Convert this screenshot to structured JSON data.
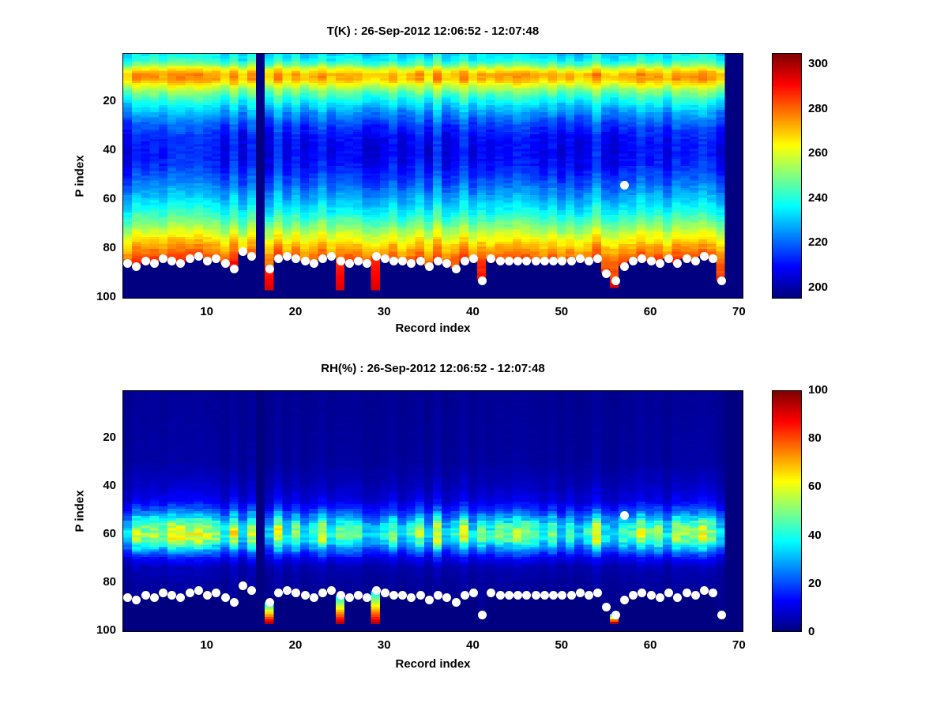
{
  "figure": {
    "background": "#ffffff",
    "marker_color": "#ffffff"
  },
  "surface_dots": [
    [
      1,
      86
    ],
    [
      2,
      87
    ],
    [
      3,
      85
    ],
    [
      4,
      86
    ],
    [
      5,
      84
    ],
    [
      6,
      85
    ],
    [
      7,
      86
    ],
    [
      8,
      84
    ],
    [
      9,
      83
    ],
    [
      10,
      85
    ],
    [
      11,
      84
    ],
    [
      12,
      86
    ],
    [
      13,
      88
    ],
    [
      14,
      81
    ],
    [
      15,
      83
    ],
    [
      17,
      88
    ],
    [
      18,
      84
    ],
    [
      19,
      83
    ],
    [
      20,
      84
    ],
    [
      21,
      85
    ],
    [
      22,
      86
    ],
    [
      23,
      84
    ],
    [
      24,
      83
    ],
    [
      25,
      85
    ],
    [
      26,
      86
    ],
    [
      27,
      85
    ],
    [
      28,
      86
    ],
    [
      29,
      83
    ],
    [
      30,
      84
    ],
    [
      31,
      85
    ],
    [
      32,
      85
    ],
    [
      33,
      86
    ],
    [
      34,
      85
    ],
    [
      35,
      87
    ],
    [
      36,
      85
    ],
    [
      37,
      86
    ],
    [
      38,
      88
    ],
    [
      39,
      85
    ],
    [
      40,
      84
    ],
    [
      41,
      93
    ],
    [
      42,
      84
    ],
    [
      43,
      85
    ],
    [
      44,
      85
    ],
    [
      45,
      85
    ],
    [
      46,
      85
    ],
    [
      47,
      85
    ],
    [
      48,
      85
    ],
    [
      49,
      85
    ],
    [
      50,
      85
    ],
    [
      51,
      85
    ],
    [
      52,
      84
    ],
    [
      53,
      85
    ],
    [
      54,
      84
    ],
    [
      55,
      90
    ],
    [
      56,
      93
    ],
    [
      57,
      87
    ],
    [
      58,
      85
    ],
    [
      59,
      84
    ],
    [
      60,
      85
    ],
    [
      61,
      86
    ],
    [
      62,
      84
    ],
    [
      63,
      86
    ],
    [
      64,
      84
    ],
    [
      65,
      85
    ],
    [
      66,
      83
    ],
    [
      67,
      84
    ],
    [
      68,
      93
    ]
  ],
  "chart_data": [
    {
      "type": "heatmap",
      "title": "T(K) : 26-Sep-2012 12:06:52 - 12:07:48",
      "xlabel": "Record index",
      "ylabel": "P index",
      "x_ticks": [
        10,
        20,
        30,
        40,
        50,
        60,
        70
      ],
      "y_ticks": [
        20,
        40,
        60,
        80,
        100
      ],
      "x_range": [
        1,
        70
      ],
      "y_range": [
        1,
        100
      ],
      "y_direction": "down",
      "colormap": "jet",
      "colorbar": {
        "min": 195,
        "max": 305,
        "ticks": [
          200,
          220,
          240,
          260,
          280,
          300
        ]
      },
      "profile": {
        "p": [
          1,
          3,
          5,
          7,
          9,
          11,
          13,
          15,
          18,
          22,
          26,
          30,
          34,
          38,
          42,
          46,
          50,
          54,
          58,
          62,
          66,
          70,
          74,
          78,
          82,
          85,
          88,
          92,
          96,
          100
        ],
        "value": [
          234,
          238,
          248,
          263,
          273,
          272,
          263,
          253,
          243,
          232,
          223,
          216,
          211,
          209,
          209,
          211,
          215,
          220,
          226,
          232,
          239,
          248,
          258,
          268,
          277,
          283,
          287,
          290,
          292,
          294
        ]
      },
      "variation": {
        "mode": "add",
        "column": 6,
        "noise": 2.5
      },
      "missing_records": [
        16,
        69,
        70
      ],
      "deep_records": [
        {
          "record": 17,
          "to_p": 97
        },
        {
          "record": 25,
          "to_p": 97
        },
        {
          "record": 29,
          "to_p": 97
        },
        {
          "record": 56,
          "to_p": 96
        }
      ],
      "deep_fill": {
        "from": 286,
        "to": 295
      },
      "extra_dots": [
        [
          57,
          54
        ]
      ]
    },
    {
      "type": "heatmap",
      "title": "RH(%) : 26-Sep-2012 12:06:52 - 12:07:48",
      "xlabel": "Record index",
      "ylabel": "P index",
      "x_ticks": [
        10,
        20,
        30,
        40,
        50,
        60,
        70
      ],
      "y_ticks": [
        20,
        40,
        60,
        80,
        100
      ],
      "x_range": [
        1,
        70
      ],
      "y_range": [
        1,
        100
      ],
      "y_direction": "down",
      "colormap": "jet",
      "colorbar": {
        "min": 0,
        "max": 100,
        "ticks": [
          0,
          20,
          40,
          60,
          80,
          100
        ]
      },
      "profile": {
        "p": [
          1,
          30,
          40,
          46,
          50,
          54,
          57,
          60,
          63,
          66,
          70,
          74,
          80,
          90,
          100
        ],
        "value": [
          2,
          3,
          6,
          10,
          18,
          32,
          43,
          48,
          42,
          28,
          12,
          5,
          3,
          2,
          2
        ]
      },
      "variation": {
        "mode": "mul",
        "column": 0.35,
        "noise": 0.15
      },
      "missing_records": [
        16,
        69,
        70
      ],
      "deep_records": [
        {
          "record": 17,
          "to_p": 97
        },
        {
          "record": 25,
          "to_p": 97
        },
        {
          "record": 29,
          "to_p": 97
        },
        {
          "record": 56,
          "to_p": 97
        }
      ],
      "deep_fill": {
        "from": 30,
        "to": 95
      },
      "extra_dots": [
        [
          57,
          52
        ]
      ]
    }
  ]
}
